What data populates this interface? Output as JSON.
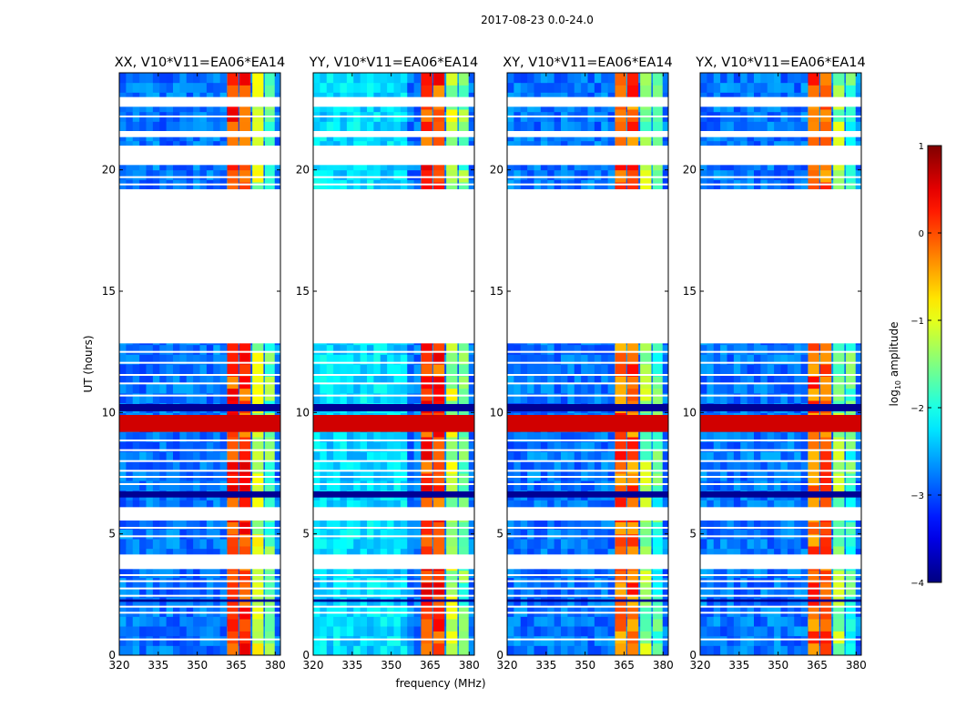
{
  "figure_title": "2017-08-23 0.0-24.0",
  "chart_data": {
    "type": "heatmap",
    "title": "2017-08-23 0.0-24.0",
    "xlabel": "frequency (MHz)",
    "ylabel": "UT (hours)",
    "xlim": [
      320,
      382
    ],
    "ylim": [
      0,
      24
    ],
    "xticks": [
      320,
      335,
      350,
      365,
      380
    ],
    "yticks": [
      0,
      5,
      10,
      15,
      20
    ],
    "colorbar": {
      "label": "log10 amplitude",
      "label_parts": [
        "log",
        "10",
        " amplitude"
      ],
      "range": [
        -4,
        1
      ],
      "ticks": [
        -4,
        -3,
        -2,
        -1,
        0,
        1
      ],
      "tick_labels": [
        "−4",
        "−3",
        "−2",
        "−1",
        "0",
        "1"
      ],
      "colormap": "jet"
    },
    "panels": [
      {
        "name": "XX",
        "title": "XX, V10*V11=EA06*EA14"
      },
      {
        "name": "YY",
        "title": "YY, V10*V11=EA06*EA14"
      },
      {
        "name": "XY",
        "title": "XY, V10*V11=EA06*EA14"
      },
      {
        "name": "YX",
        "title": "YX, V10*V11=EA06*EA14"
      }
    ],
    "flagged_time_ranges_hours": [
      [
        3.55,
        4.15
      ],
      [
        5.55,
        6.1
      ],
      [
        12.85,
        19.2
      ],
      [
        20.2,
        21.0
      ],
      [
        21.35,
        21.6
      ],
      [
        22.6,
        23.0
      ]
    ],
    "strong_rfi_channels_mhz": [
      {
        "start": 361.5,
        "end": 365.8,
        "level": 0.1
      },
      {
        "start": 366.2,
        "end": 370.5,
        "level": 0.1
      },
      {
        "start": 371.2,
        "end": 375.5,
        "level": -1.2
      },
      {
        "start": 376.0,
        "end": 379.8,
        "level": -1.6
      }
    ],
    "broadband_rfi_event": {
      "time_range_hours": [
        9.2,
        9.9
      ],
      "level": 0.6
    },
    "background_level": -2.8
  }
}
